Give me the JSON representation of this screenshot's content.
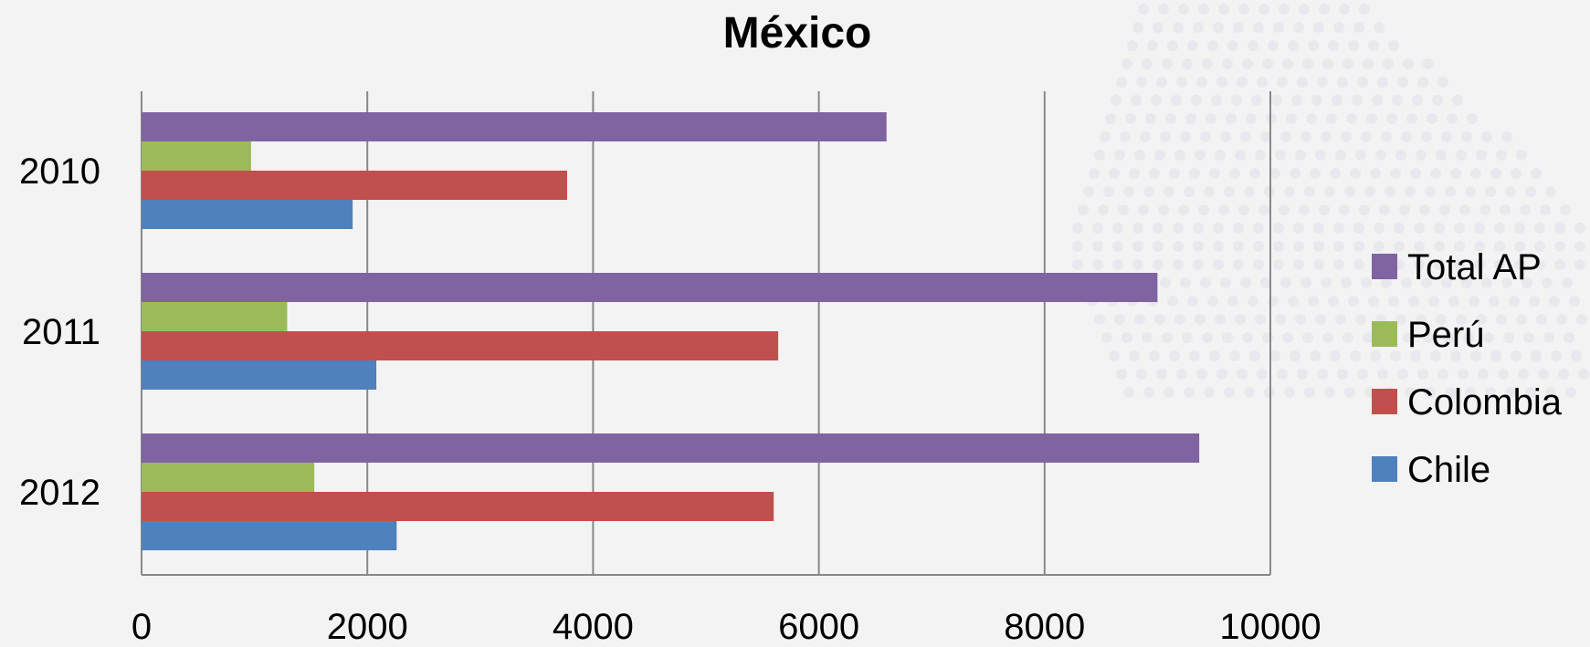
{
  "chart_data": {
    "type": "bar",
    "orientation": "horizontal",
    "title": "México",
    "xlabel": "",
    "ylabel": "",
    "categories": [
      "2010",
      "2011",
      "2012"
    ],
    "xlim": [
      0,
      10000
    ],
    "xticks": [
      "0",
      "2000",
      "4000",
      "6000",
      "8000",
      "10000"
    ],
    "grid": true,
    "legend_position": "right",
    "series": [
      {
        "name": "Total AP",
        "color": "#8064a2",
        "values": [
          6600,
          9000,
          9370
        ]
      },
      {
        "name": "Perú",
        "color": "#9bbb59",
        "values": [
          970,
          1290,
          1530
        ]
      },
      {
        "name": "Colombia",
        "color": "#c0504d",
        "values": [
          3770,
          5640,
          5600
        ]
      },
      {
        "name": "Chile",
        "color": "#4f81bd",
        "values": [
          1870,
          2080,
          2260
        ]
      }
    ],
    "background_color": "#f3f3f3",
    "gridline_color": "#888888"
  }
}
